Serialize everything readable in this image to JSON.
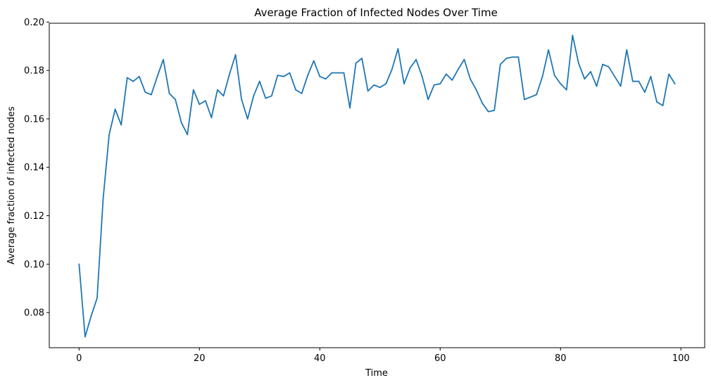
{
  "chart_data": {
    "type": "line",
    "title": "Average Fraction of Infected Nodes Over Time",
    "xlabel": "Time",
    "ylabel": "Average fraction of infected nodes",
    "xlim": [
      -4.95,
      103.95
    ],
    "ylim": [
      0.0655,
      0.1995
    ],
    "xticks": [
      0,
      20,
      40,
      60,
      80,
      100
    ],
    "xtick_labels": [
      "0",
      "20",
      "40",
      "60",
      "80",
      "100"
    ],
    "yticks": [
      0.08,
      0.1,
      0.12,
      0.14,
      0.16,
      0.18,
      0.2
    ],
    "ytick_labels": [
      "0.08",
      "0.10",
      "0.12",
      "0.14",
      "0.16",
      "0.18",
      "0.20"
    ],
    "grid": false,
    "legend": "none",
    "color": "#1f77b4",
    "x": [
      0,
      1,
      2,
      3,
      4,
      5,
      6,
      7,
      8,
      9,
      10,
      11,
      12,
      13,
      14,
      15,
      16,
      17,
      18,
      19,
      20,
      21,
      22,
      23,
      24,
      25,
      26,
      27,
      28,
      29,
      30,
      31,
      32,
      33,
      34,
      35,
      36,
      37,
      38,
      39,
      40,
      41,
      42,
      43,
      44,
      45,
      46,
      47,
      48,
      49,
      50,
      51,
      52,
      53,
      54,
      55,
      56,
      57,
      58,
      59,
      60,
      61,
      62,
      63,
      64,
      65,
      66,
      67,
      68,
      69,
      70,
      71,
      72,
      73,
      74,
      75,
      76,
      77,
      78,
      79,
      80,
      81,
      82,
      83,
      84,
      85,
      86,
      87,
      88,
      89,
      90,
      91,
      92,
      93,
      94,
      95,
      96,
      97,
      98,
      99
    ],
    "values": [
      0.1,
      0.07,
      0.0785,
      0.086,
      0.127,
      0.1535,
      0.164,
      0.1575,
      0.177,
      0.1755,
      0.1775,
      0.171,
      0.17,
      0.1775,
      0.1845,
      0.1705,
      0.168,
      0.1585,
      0.1535,
      0.172,
      0.166,
      0.1675,
      0.1605,
      0.172,
      0.1695,
      0.1785,
      0.1865,
      0.168,
      0.16,
      0.1695,
      0.1755,
      0.1685,
      0.1695,
      0.178,
      0.1775,
      0.179,
      0.172,
      0.1705,
      0.178,
      0.184,
      0.1775,
      0.1765,
      0.179,
      0.179,
      0.179,
      0.1645,
      0.183,
      0.185,
      0.1715,
      0.174,
      0.173,
      0.1745,
      0.1805,
      0.189,
      0.1745,
      0.181,
      0.1845,
      0.1775,
      0.168,
      0.174,
      0.1745,
      0.1785,
      0.176,
      0.1805,
      0.1845,
      0.1765,
      0.172,
      0.1665,
      0.163,
      0.1635,
      0.1825,
      0.185,
      0.1855,
      0.1855,
      0.168,
      0.169,
      0.17,
      0.1775,
      0.1885,
      0.178,
      0.1745,
      0.172,
      0.1945,
      0.183,
      0.1765,
      0.1795,
      0.1735,
      0.1825,
      0.1815,
      0.1775,
      0.1735,
      0.1885,
      0.1755,
      0.1755,
      0.171,
      0.1775,
      0.167,
      0.1655,
      0.1785,
      0.1745
    ]
  }
}
